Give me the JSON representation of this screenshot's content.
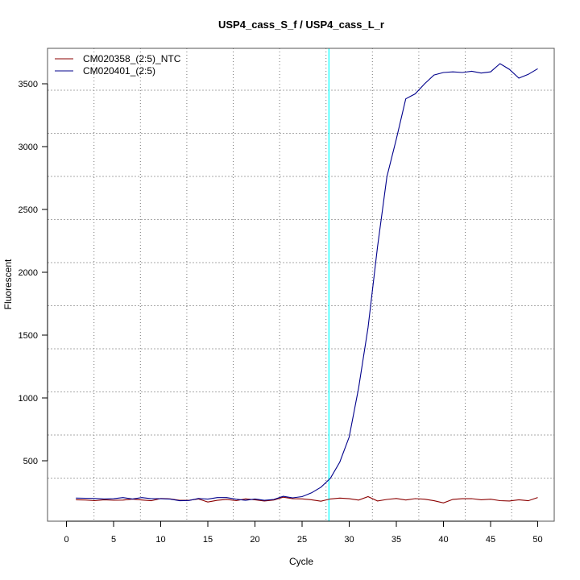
{
  "chart_data": {
    "type": "line",
    "title": "USP4_cass_S_f / USP4_cass_L_r",
    "xlabel": "Cycle",
    "ylabel": "Fluorescent",
    "xlim": [
      -2,
      52
    ],
    "ylim": [
      19,
      3782
    ],
    "xticks": [
      0,
      5,
      10,
      15,
      20,
      25,
      30,
      35,
      40,
      45,
      50
    ],
    "yticks": [
      500,
      1000,
      1500,
      2000,
      2500,
      3000,
      3500
    ],
    "grid": true,
    "legend_position": "top-left",
    "threshold_cycle": 27.85,
    "threshold_color": "#00ffff",
    "x": [
      1,
      2,
      3,
      4,
      5,
      6,
      7,
      8,
      9,
      10,
      11,
      12,
      13,
      14,
      15,
      16,
      17,
      18,
      19,
      20,
      21,
      22,
      23,
      24,
      25,
      26,
      27,
      28,
      29,
      30,
      31,
      32,
      33,
      34,
      35,
      36,
      37,
      38,
      39,
      40,
      41,
      42,
      43,
      44,
      45,
      46,
      47,
      48,
      49,
      50
    ],
    "series": [
      {
        "name": "CM020358_(2:5)_NTC",
        "color": "#8b0000",
        "values": [
          190,
          188,
          183,
          190,
          186,
          187,
          195,
          188,
          182,
          200,
          197,
          185,
          186,
          196,
          172,
          185,
          193,
          183,
          197,
          190,
          180,
          188,
          210,
          198,
          197,
          190,
          178,
          196,
          203,
          198,
          187,
          215,
          180,
          192,
          200,
          188,
          199,
          194,
          182,
          165,
          193,
          198,
          199,
          190,
          194,
          183,
          180,
          190,
          182,
          208
        ]
      },
      {
        "name": "CM020401_(2:5)",
        "color": "#00008b",
        "values": [
          203,
          202,
          200,
          196,
          198,
          207,
          196,
          207,
          198,
          198,
          195,
          182,
          184,
          200,
          195,
          207,
          207,
          194,
          185,
          196,
          185,
          192,
          217,
          205,
          215,
          245,
          290,
          360,
          490,
          690,
          1080,
          1560,
          2200,
          2760,
          3060,
          3380,
          3420,
          3500,
          3570,
          3590,
          3595,
          3590,
          3600,
          3585,
          3595,
          3660,
          3615,
          3545,
          3575,
          3620
        ]
      }
    ]
  }
}
